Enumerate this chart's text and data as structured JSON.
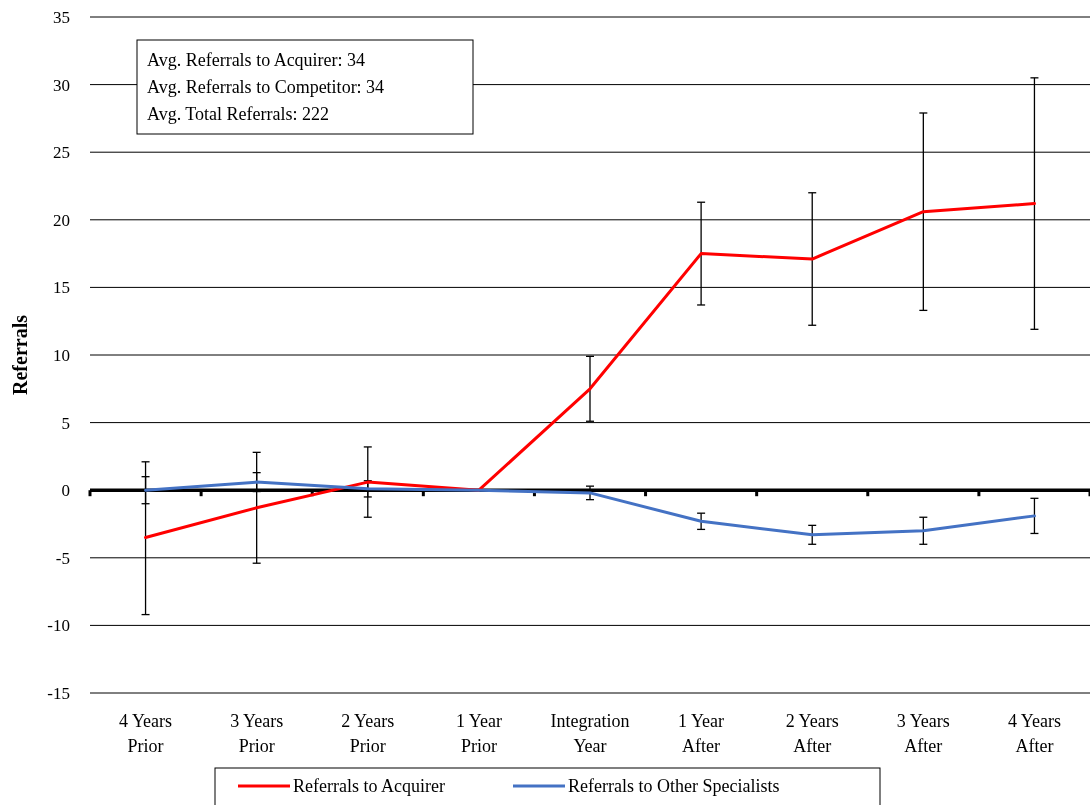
{
  "chart_data": {
    "type": "line",
    "ylabel": "Referrals",
    "categories": [
      "4 Years Prior",
      "3 Years Prior",
      "2 Years Prior",
      "1 Year Prior",
      "Integration Year",
      "1 Year After",
      "2 Years After",
      "3 Years After",
      "4 Years After"
    ],
    "series": [
      {
        "name": "Referrals to Acquirer",
        "color": "#ff0000",
        "values": [
          -3.5,
          -1.3,
          0.6,
          0,
          7.5,
          17.5,
          17.1,
          20.6,
          21.2
        ],
        "errors": [
          [
            -9.2,
            2.1
          ],
          4.1,
          2.6,
          null,
          2.4,
          3.8,
          4.9,
          7.3,
          9.3
        ]
      },
      {
        "name": "Referrals to Other Specialists",
        "color": "#4472c4",
        "values": [
          0,
          0.6,
          0.1,
          0,
          -0.2,
          -2.3,
          -3.3,
          -3.0,
          -1.9
        ],
        "errors": [
          1.0,
          0.7,
          0.6,
          null,
          0.5,
          0.6,
          0.7,
          1.0,
          1.3
        ]
      }
    ],
    "ylim": [
      -15,
      35
    ],
    "yticks": [
      -15,
      -10,
      -5,
      0,
      5,
      10,
      15,
      20,
      25,
      30,
      35
    ],
    "grid": "y",
    "legend": "bottom",
    "marker": "none",
    "line_style": "solid",
    "annotations": [
      "Avg. Referrals to Acquirer: 34",
      "Avg. Referrals to Competitor: 34",
      "Avg. Total Referrals: 222"
    ]
  }
}
